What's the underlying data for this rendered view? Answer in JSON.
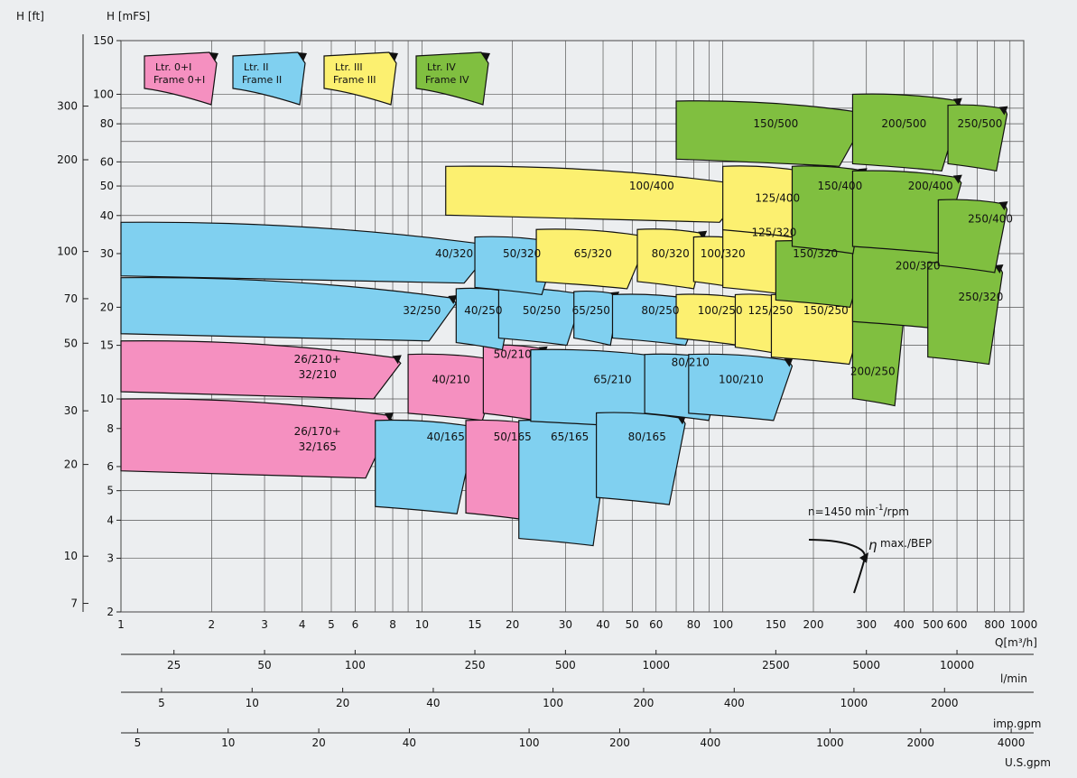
{
  "chart_data": {
    "type": "area",
    "axis_units": {
      "h_ft": "H  [ft]",
      "h_mfs": "H  [mFS]",
      "q": "Q[m³/h]",
      "lmin": "l/min",
      "impgpm": "imp.gpm",
      "usgpm": "U.S.gpm"
    },
    "x_scale": "log",
    "y_scale": "log",
    "xlim": [
      1,
      1000
    ],
    "ylim": [
      2,
      150
    ],
    "x_ticks": [
      1,
      2,
      3,
      4,
      5,
      6,
      8,
      10,
      15,
      20,
      30,
      40,
      50,
      60,
      80,
      100,
      150,
      200,
      300,
      400,
      500,
      600,
      800,
      1000
    ],
    "y_ticks_mfs": [
      2,
      3,
      4,
      5,
      6,
      8,
      10,
      15,
      20,
      30,
      40,
      50,
      60,
      80,
      100,
      150
    ],
    "y_ticks_ft": [
      7,
      10,
      20,
      30,
      50,
      70,
      100,
      200,
      300
    ],
    "lmin_ticks": [
      25,
      50,
      100,
      250,
      500,
      1000,
      2500,
      5000,
      10000
    ],
    "impgpm_ticks": [
      5,
      10,
      20,
      40,
      100,
      200,
      400,
      1000,
      2000
    ],
    "usgpm_ticks": [
      5,
      10,
      20,
      40,
      100,
      200,
      400,
      1000,
      2000,
      4000
    ],
    "grid": true,
    "frames": [
      {
        "line1": "Ltr. 0+I",
        "line2": "Frame 0+I",
        "color": "#f590c0"
      },
      {
        "line1": "Ltr. II",
        "line2": "Frame II",
        "color": "#80d0f0"
      },
      {
        "line1": "Ltr. III",
        "line2": "Frame III",
        "color": "#fcf070"
      },
      {
        "line1": "Ltr. IV",
        "line2": "Frame IV",
        "color": "#80bf40"
      }
    ],
    "regions": [
      {
        "name": "26/170+ 32/165",
        "frame": 0,
        "qmin": 1,
        "qmax": 8,
        "hmin": 5.5,
        "hmax": 10,
        "lx": 4.5,
        "ly": 7.4
      },
      {
        "name": "26/210+ 32/210",
        "frame": 0,
        "qmin": 1,
        "qmax": 8.5,
        "hmin": 10,
        "hmax": 15.5,
        "lx": 4.5,
        "ly": 12.8
      },
      {
        "name": "40/165",
        "frame": 1,
        "qmin": 7,
        "qmax": 15,
        "hmin": 4.2,
        "hmax": 8.5,
        "lx": 12,
        "ly": 7.5
      },
      {
        "name": "40/210",
        "frame": 0,
        "qmin": 9,
        "qmax": 18,
        "hmin": 8.5,
        "hmax": 14,
        "lx": 12.5,
        "ly": 11.6
      },
      {
        "name": "50/165",
        "frame": 0,
        "qmin": 14,
        "qmax": 25,
        "hmin": 4,
        "hmax": 8.5,
        "lx": 20,
        "ly": 7.5
      },
      {
        "name": "50/210",
        "frame": 0,
        "qmin": 16,
        "qmax": 26,
        "hmin": 8.5,
        "hmax": 15,
        "lx": 20,
        "ly": 14
      },
      {
        "name": "65/165",
        "frame": 1,
        "qmin": 21,
        "qmax": 42,
        "hmin": 3.3,
        "hmax": 8.5,
        "lx": 31,
        "ly": 7.5
      },
      {
        "name": "65/210",
        "frame": 1,
        "qmin": 23,
        "qmax": 72,
        "hmin": 8,
        "hmax": 14.5,
        "lx": 43,
        "ly": 11.6
      },
      {
        "name": "80/165",
        "frame": 1,
        "qmin": 38,
        "qmax": 75,
        "hmin": 4.5,
        "hmax": 9,
        "lx": 56,
        "ly": 7.5
      },
      {
        "name": "80/210",
        "frame": 1,
        "qmin": 55,
        "qmax": 100,
        "hmin": 8.5,
        "hmax": 14,
        "lx": 78,
        "ly": 13.2
      },
      {
        "name": "100/210",
        "frame": 1,
        "qmin": 77,
        "qmax": 170,
        "hmin": 8.5,
        "hmax": 14,
        "lx": 115,
        "ly": 11.6
      },
      {
        "name": "32/250",
        "frame": 1,
        "qmin": 1,
        "qmax": 13,
        "hmin": 15.5,
        "hmax": 25,
        "lx": 10,
        "ly": 19.5
      },
      {
        "name": "40/250",
        "frame": 1,
        "qmin": 13,
        "qmax": 20,
        "hmin": 14.5,
        "hmax": 23,
        "lx": 16,
        "ly": 19.5
      },
      {
        "name": "50/250",
        "frame": 1,
        "qmin": 18,
        "qmax": 34,
        "hmin": 15,
        "hmax": 23,
        "lx": 25,
        "ly": 19.5
      },
      {
        "name": "65/250",
        "frame": 1,
        "qmin": 32,
        "qmax": 45,
        "hmin": 15,
        "hmax": 22.5,
        "lx": 36.5,
        "ly": 19.5
      },
      {
        "name": "80/250",
        "frame": 1,
        "qmin": 43,
        "qmax": 85,
        "hmin": 15,
        "hmax": 22,
        "lx": 62,
        "ly": 19.5
      },
      {
        "name": "100/250",
        "frame": 2,
        "qmin": 70,
        "qmax": 125,
        "hmin": 15,
        "hmax": 22,
        "lx": 98,
        "ly": 19.5
      },
      {
        "name": "125/250",
        "frame": 2,
        "qmin": 110,
        "qmax": 170,
        "hmin": 14,
        "hmax": 22,
        "lx": 144,
        "ly": 19.5
      },
      {
        "name": "150/250",
        "frame": 2,
        "qmin": 145,
        "qmax": 300,
        "hmin": 13,
        "hmax": 22,
        "lx": 220,
        "ly": 19.5
      },
      {
        "name": "200/250",
        "frame": 3,
        "qmin": 270,
        "qmax": 400,
        "hmin": 9.5,
        "hmax": 20,
        "lx": 315,
        "ly": 12.3
      },
      {
        "name": "40/320",
        "frame": 1,
        "qmin": 1,
        "qmax": 17,
        "hmin": 24,
        "hmax": 38,
        "lx": 12.8,
        "ly": 30
      },
      {
        "name": "50/320",
        "frame": 1,
        "qmin": 15,
        "qmax": 28,
        "hmin": 22,
        "hmax": 34,
        "lx": 21.5,
        "ly": 30
      },
      {
        "name": "65/320",
        "frame": 2,
        "qmin": 24,
        "qmax": 56,
        "hmin": 23,
        "hmax": 36,
        "lx": 37,
        "ly": 30
      },
      {
        "name": "80/320",
        "frame": 2,
        "qmin": 52,
        "qmax": 88,
        "hmin": 23,
        "hmax": 36,
        "lx": 67,
        "ly": 30
      },
      {
        "name": "100/320",
        "frame": 2,
        "qmin": 80,
        "qmax": 125,
        "hmin": 23,
        "hmax": 34,
        "lx": 100,
        "ly": 30
      },
      {
        "name": "125/320",
        "frame": 2,
        "qmin": 100,
        "qmax": 180,
        "hmin": 22,
        "hmax": 40,
        "lx": 148,
        "ly": 35.2
      },
      {
        "name": "150/320",
        "frame": 3,
        "qmin": 150,
        "qmax": 300,
        "hmin": 20,
        "hmax": 33,
        "lx": 203,
        "ly": 30
      },
      {
        "name": "200/320",
        "frame": 3,
        "qmin": 270,
        "qmax": 600,
        "hmin": 17,
        "hmax": 32,
        "lx": 445,
        "ly": 27.4
      },
      {
        "name": "250/320",
        "frame": 3,
        "qmin": 480,
        "qmax": 850,
        "hmin": 13,
        "hmax": 28,
        "lx": 720,
        "ly": 21.6
      },
      {
        "name": "100/400",
        "frame": 2,
        "qmin": 12,
        "qmax": 120,
        "hmin": 38,
        "hmax": 58,
        "lx": 58,
        "ly": 50
      },
      {
        "name": "125/400",
        "frame": 2,
        "qmin": 100,
        "qmax": 190,
        "hmin": 34,
        "hmax": 58,
        "lx": 152,
        "ly": 45.6
      },
      {
        "name": "150/400",
        "frame": 3,
        "qmin": 170,
        "qmax": 300,
        "hmin": 30,
        "hmax": 58,
        "lx": 245,
        "ly": 50
      },
      {
        "name": "200/400",
        "frame": 3,
        "qmin": 270,
        "qmax": 620,
        "hmin": 30,
        "hmax": 56,
        "lx": 490,
        "ly": 50
      },
      {
        "name": "250/400",
        "frame": 3,
        "qmin": 520,
        "qmax": 880,
        "hmin": 26,
        "hmax": 45,
        "lx": 775,
        "ly": 39
      },
      {
        "name": "150/500",
        "frame": 3,
        "qmin": 70,
        "qmax": 300,
        "hmin": 58,
        "hmax": 95,
        "lx": 150,
        "ly": 80
      },
      {
        "name": "200/500",
        "frame": 3,
        "qmin": 270,
        "qmax": 620,
        "hmin": 56,
        "hmax": 100,
        "lx": 400,
        "ly": 80
      },
      {
        "name": "250/500",
        "frame": 3,
        "qmin": 560,
        "qmax": 880,
        "hmin": 56,
        "hmax": 92,
        "lx": 715,
        "ly": 80
      }
    ],
    "annotations": {
      "speed_prefix": "n=1450  min",
      "speed_exponent": "-1",
      "speed_suffix": "/rpm",
      "bep_label": "max./BEP"
    }
  }
}
